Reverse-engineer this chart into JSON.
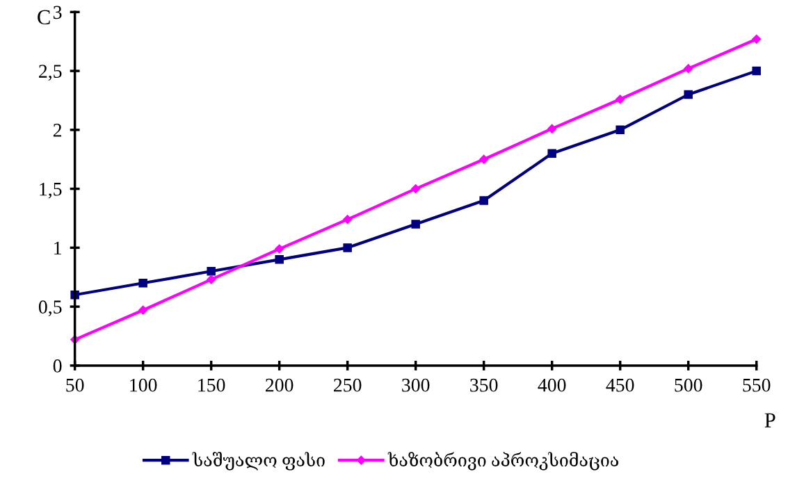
{
  "chart_data": {
    "type": "line",
    "xlabel": "P",
    "ylabel": "C",
    "x": [
      50,
      100,
      150,
      200,
      250,
      300,
      350,
      400,
      450,
      500,
      550
    ],
    "series": [
      {
        "name": "საშუალო ფასი",
        "color": "#000080",
        "marker": "square",
        "values": [
          0.6,
          0.7,
          0.8,
          0.9,
          1.0,
          1.2,
          1.4,
          1.8,
          2.0,
          2.3,
          2.5
        ]
      },
      {
        "name": "ხაზობრივი აპროკსიმაცია",
        "color": "#ff00ff",
        "marker": "diamond",
        "values": [
          0.22,
          0.47,
          0.73,
          0.99,
          1.24,
          1.5,
          1.75,
          2.01,
          2.26,
          2.52,
          2.77
        ]
      }
    ],
    "xlim": [
      50,
      550
    ],
    "xticks": [
      50,
      100,
      150,
      200,
      250,
      300,
      350,
      400,
      450,
      500,
      550
    ],
    "ylim": [
      0,
      3
    ],
    "yticks": [
      0,
      {
        "value": 0.5,
        "label": "0,5"
      },
      1,
      {
        "value": 1.5,
        "label": "1,5"
      },
      2,
      {
        "value": 2.5,
        "label": "2,5"
      },
      3
    ],
    "grid": false,
    "legend": "bottom",
    "line_style": "solid"
  }
}
